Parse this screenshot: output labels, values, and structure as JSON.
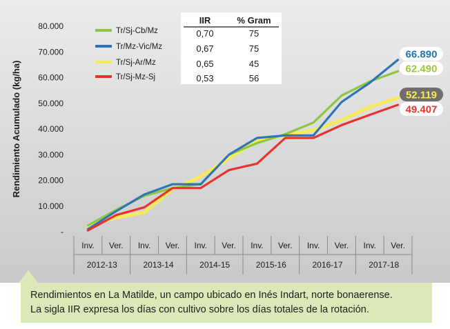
{
  "chart_data": {
    "type": "line",
    "ylabel": "Rendimiento Acumulado (kg/ha)",
    "ylim": [
      0,
      80000
    ],
    "yticks": [
      "-",
      "10.000",
      "20.000",
      "30.000",
      "40.000",
      "50.000",
      "60.000",
      "70.000",
      "80.000"
    ],
    "grid": false,
    "legend_position": "top-left",
    "x_sub_labels": [
      "Inv.",
      "Ver.",
      "Inv.",
      "Ver.",
      "Inv.",
      "Ver.",
      "Inv.",
      "Ver.",
      "Inv.",
      "Ver.",
      "Inv.",
      "Ver."
    ],
    "x_group_labels": [
      "2012-13",
      "2013-14",
      "2014-15",
      "2015-16",
      "2016-17",
      "2017-18"
    ],
    "table": {
      "headers": [
        "IIR",
        "% Gram"
      ],
      "rows": [
        {
          "iir": "0,70",
          "gram": "75"
        },
        {
          "iir": "0,67",
          "gram": "75"
        },
        {
          "iir": "0,65",
          "gram": "45"
        },
        {
          "iir": "0,53",
          "gram": "56"
        }
      ]
    },
    "series": [
      {
        "name": "Tr/Sj-Cb/Mz",
        "color": "#8dc63f",
        "values": [
          2500,
          8500,
          14000,
          17000,
          18500,
          30000,
          34500,
          38000,
          42500,
          53000,
          58500,
          62490
        ],
        "end_label": "62.490",
        "end_label_text": "#9ec93a",
        "end_label_bg": "#ffffff"
      },
      {
        "name": "Tr/Mz-Vic/Mz",
        "color": "#2e75b6",
        "values": [
          1000,
          8000,
          14500,
          18500,
          18500,
          30000,
          36500,
          37500,
          37500,
          50500,
          58000,
          66890
        ],
        "end_label": "66.890",
        "end_label_text": "#1f77b4",
        "end_label_bg": "#ffffff"
      },
      {
        "name": "Tr/Sj-Ar/Mz",
        "color": "#f4ea5c",
        "values": [
          2500,
          5500,
          7500,
          16500,
          21500,
          28500,
          35500,
          37500,
          39500,
          43500,
          48500,
          52119
        ],
        "end_label": "52.119",
        "end_label_text": "#f6ec5a",
        "end_label_bg": "#6f6e6b"
      },
      {
        "name": "Tr/Sj-Mz-Sj",
        "color": "#e8322d",
        "values": [
          500,
          6500,
          9500,
          17000,
          17000,
          24000,
          26500,
          36500,
          36500,
          41500,
          45500,
          49407
        ],
        "end_label": "49.407",
        "end_label_text": "#e8322d",
        "end_label_bg": "#ffffff"
      }
    ]
  },
  "caption": {
    "line1": "Rendimientos en La Matilde, un campo ubicado en Inés Indart, norte bonaerense.",
    "line2": "La sigla IIR expresa los días con cultivo sobre los días totales de la rotación."
  },
  "colors": {
    "plot_background_top": "#e9e9e9",
    "plot_background_bottom": "#c8c8c8",
    "caption_background": "#dbe8b8"
  }
}
